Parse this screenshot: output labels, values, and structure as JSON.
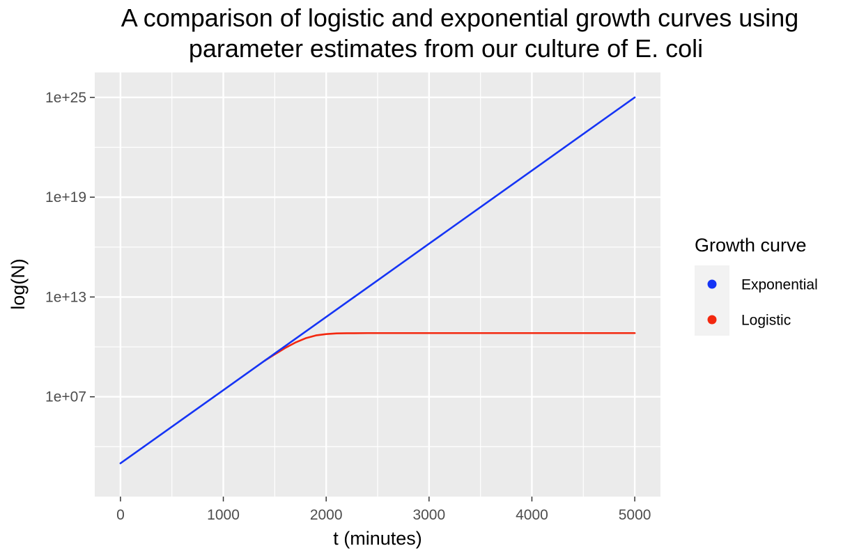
{
  "chart_data": {
    "type": "line",
    "title": "A comparison of logistic and exponential growth curves using parameter estimates from our culture of E. coli",
    "title_lines": [
      "A comparison of logistic and exponential growth curves using",
      "parameter estimates from our culture of E. coli"
    ],
    "xlabel": "t (minutes)",
    "ylabel": "log(N)",
    "y_scale": "log10",
    "xlim": [
      -250,
      5250
    ],
    "ylim_log10": [
      1.0,
      26.5
    ],
    "x_ticks": [
      0,
      1000,
      2000,
      3000,
      4000,
      5000
    ],
    "x_tick_labels": [
      "0",
      "1000",
      "2000",
      "3000",
      "4000",
      "5000"
    ],
    "y_ticks_log10": [
      7,
      13,
      19,
      25
    ],
    "y_tick_labels": [
      "1e+07",
      "1e+13",
      "1e+19",
      "1e+25"
    ],
    "grid": true,
    "legend": {
      "title": "Growth curve",
      "position": "right",
      "entries": [
        {
          "name": "Exponential",
          "color": "#1534f5"
        },
        {
          "name": "Logistic",
          "color": "#f3280f"
        }
      ]
    },
    "series": [
      {
        "name": "Exponential",
        "color": "#1534f5",
        "x": [
          0,
          500,
          1000,
          1500,
          2000,
          2500,
          3000,
          3500,
          4000,
          4500,
          5000
        ],
        "y_log10": [
          3.0,
          5.2,
          7.4,
          9.6,
          11.8,
          14.0,
          16.2,
          18.4,
          20.6,
          22.8,
          25.0
        ]
      },
      {
        "name": "Logistic",
        "color": "#f3280f",
        "x": [
          1400,
          1500,
          1600,
          1700,
          1800,
          1900,
          2000,
          2100,
          2200,
          2400,
          3000,
          4000,
          5000
        ],
        "y_log10": [
          9.16,
          9.55,
          9.93,
          10.26,
          10.52,
          10.69,
          10.77,
          10.81,
          10.82,
          10.83,
          10.83,
          10.83,
          10.83
        ]
      }
    ]
  }
}
